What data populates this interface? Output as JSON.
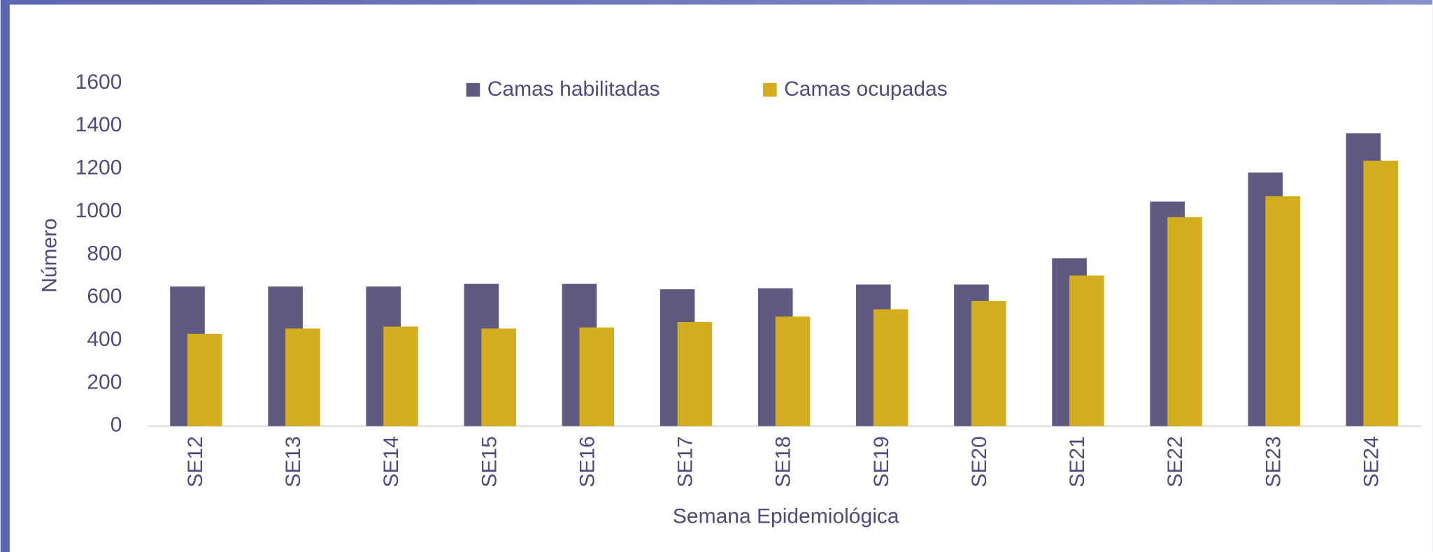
{
  "chart_data": {
    "type": "bar",
    "categories": [
      "SE12",
      "SE13",
      "SE14",
      "SE15",
      "SE16",
      "SE17",
      "SE18",
      "SE19",
      "SE20",
      "SE21",
      "SE22",
      "SE23",
      "SE24"
    ],
    "series": [
      {
        "name": "Camas habilitadas",
        "color": "#5f5a80",
        "values": [
          651,
          651,
          651,
          664,
          664,
          638,
          643,
          660,
          660,
          783,
          1047,
          1183,
          1366
        ]
      },
      {
        "name": "Camas ocupadas",
        "color": "#d4ae1e",
        "values": [
          430,
          455,
          464,
          455,
          460,
          485,
          511,
          545,
          583,
          702,
          974,
          1072,
          1238
        ]
      }
    ],
    "ylim": [
      0,
      1600
    ],
    "yticks": [
      0,
      200,
      400,
      600,
      800,
      1000,
      1200,
      1400,
      1600
    ],
    "y_label": "Número",
    "x_label": "Semana Epidemiológica",
    "legend": "top"
  }
}
